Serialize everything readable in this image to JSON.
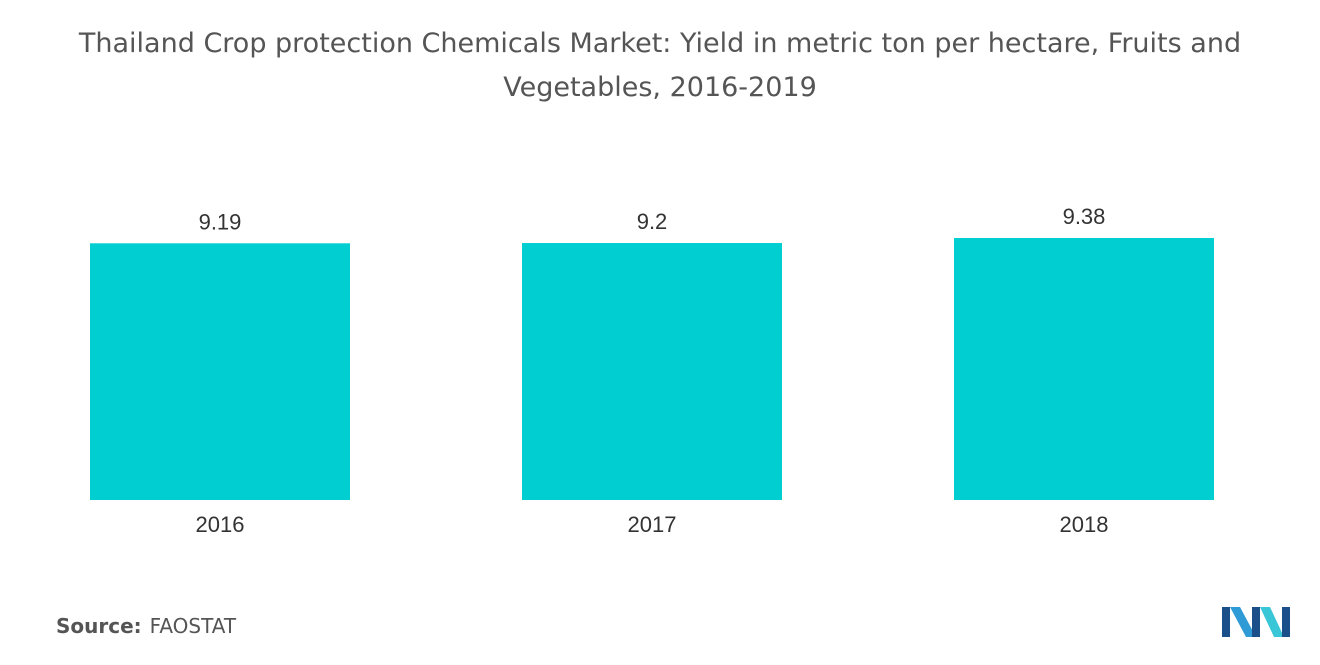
{
  "chart_data": {
    "type": "bar",
    "title": "Thailand Crop protection Chemicals Market: Yield in metric ton per hectare, Fruits and Vegetables, 2016-2019",
    "categories": [
      "2016",
      "2017",
      "2018"
    ],
    "values": [
      9.19,
      9.2,
      9.38
    ],
    "value_labels": [
      "9.19",
      "9.2",
      "9.38"
    ],
    "xlabel": "",
    "ylabel": "",
    "ylim": [
      0,
      9.38
    ],
    "grid": false,
    "legend": "none",
    "bar_color": "#00CED1"
  },
  "source": {
    "label": "Source:",
    "value": "FAOSTAT"
  },
  "logo": {
    "icon": "mordor-intelligence-logo-icon",
    "colors": [
      "#1B4F8A",
      "#2E9BD6",
      "#39C6D6"
    ]
  }
}
